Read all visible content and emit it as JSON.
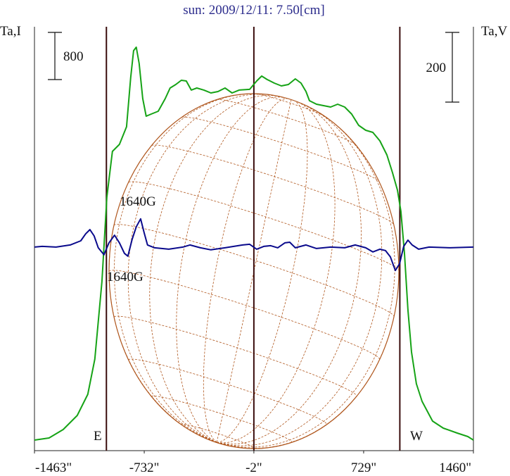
{
  "chart_data": {
    "type": "line",
    "title": "sun: 2009/12/11: 7.50[cm]",
    "ylabel": "Ta,I",
    "y2label": "Ta,V",
    "xlim": [
      -1463,
      1460
    ],
    "xticks": [
      {
        "value": -1463,
        "label": "-1463\""
      },
      {
        "value": -732,
        "label": "-732\""
      },
      {
        "value": -2,
        "label": "-2\""
      },
      {
        "value": 729,
        "label": "729\""
      },
      {
        "value": 1460,
        "label": "1460\""
      }
    ],
    "ylim": [
      0,
      7188
    ],
    "y2lim": [
      -584,
      632
    ],
    "y_scale_bar": 800,
    "y2_scale_bar": 200,
    "limb_lines": [
      -984,
      -2,
      970
    ],
    "limb_labels": [
      "E",
      "W"
    ],
    "annotations": [
      "1640G",
      "1640G"
    ],
    "series": [
      {
        "name": "I",
        "color": "#16a316",
        "x": [
          -1463,
          -1366,
          -1272,
          -1178,
          -1108,
          -1061,
          -1014,
          -981,
          -944,
          -897,
          -850,
          -822,
          -803,
          -785,
          -766,
          -742,
          -719,
          -686,
          -639,
          -592,
          -560,
          -522,
          -485,
          -452,
          -419,
          -382,
          -335,
          -288,
          -241,
          -194,
          -147,
          -100,
          -30,
          17,
          50,
          87,
          134,
          181,
          228,
          274,
          312,
          345,
          368,
          415,
          462,
          509,
          556,
          603,
          649,
          696,
          743,
          790,
          837,
          884,
          921,
          954,
          977,
          1001,
          1024,
          1048,
          1080,
          1118,
          1188,
          1259,
          1352,
          1423,
          1460
        ],
        "values": [
          179,
          215,
          358,
          597,
          955,
          1552,
          2866,
          4298,
          5074,
          5194,
          5492,
          6328,
          6782,
          6842,
          6567,
          5970,
          5672,
          5707,
          5755,
          5970,
          6149,
          6209,
          6281,
          6269,
          6114,
          6149,
          6114,
          6066,
          6090,
          6149,
          6066,
          6114,
          6126,
          6269,
          6352,
          6293,
          6233,
          6185,
          6209,
          6305,
          6233,
          6090,
          5934,
          5875,
          5851,
          5827,
          5875,
          5827,
          5707,
          5516,
          5433,
          5397,
          5254,
          5015,
          4716,
          4418,
          4060,
          3343,
          2388,
          1672,
          1134,
          836,
          501,
          382,
          299,
          239,
          179
        ]
      },
      {
        "name": "V",
        "color": "#0a0a8c",
        "axis": "y2",
        "x": [
          -1463,
          -1412,
          -1319,
          -1225,
          -1155,
          -1122,
          -1094,
          -1066,
          -1038,
          -1000,
          -967,
          -930,
          -897,
          -864,
          -841,
          -813,
          -785,
          -756,
          -733,
          -710,
          -663,
          -569,
          -475,
          -428,
          -358,
          -288,
          -194,
          -77,
          -30,
          17,
          64,
          110,
          157,
          204,
          237,
          274,
          345,
          415,
          509,
          603,
          673,
          743,
          790,
          837,
          874,
          907,
          940,
          968,
          996,
          1024,
          1052,
          1095,
          1165,
          1305,
          1460
        ],
        "values": [
          0,
          2,
          0,
          6,
          18,
          38,
          50,
          32,
          -2,
          -22,
          12,
          34,
          12,
          -18,
          -26,
          22,
          58,
          81,
          42,
          6,
          -2,
          -6,
          0,
          6,
          -2,
          -8,
          -2,
          6,
          8,
          -6,
          2,
          4,
          -2,
          12,
          14,
          -2,
          6,
          -4,
          0,
          -2,
          6,
          -2,
          -14,
          -6,
          -10,
          -28,
          -67,
          -48,
          2,
          20,
          6,
          -6,
          0,
          -2,
          0
        ]
      }
    ]
  }
}
